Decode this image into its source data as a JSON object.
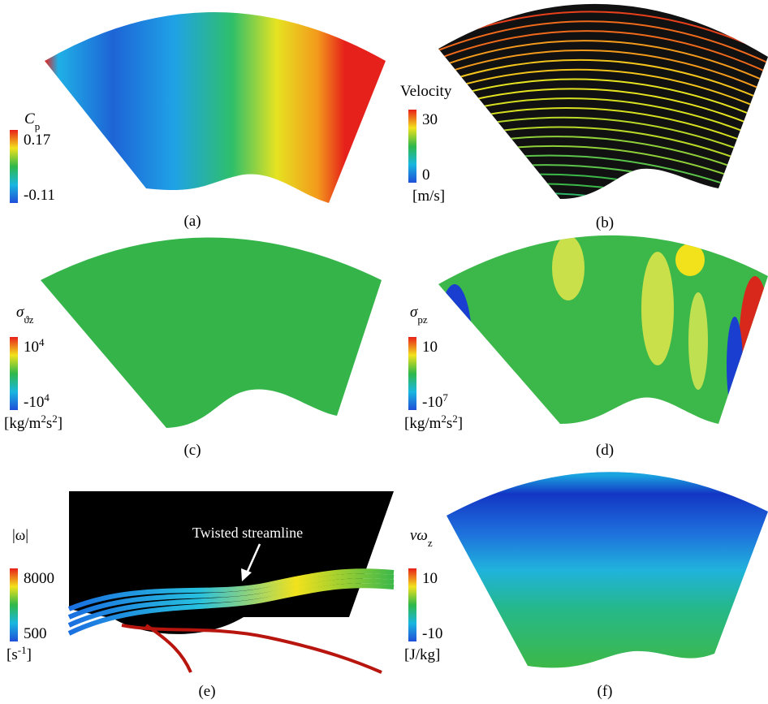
{
  "panels": [
    {
      "label": "(a)",
      "colorbar": {
        "title": [
          {
            "text": "C"
          },
          {
            "text": "p",
            "sub": true
          }
        ],
        "max": [
          {
            "text": "0.17"
          }
        ],
        "min": [
          {
            "text": "-0.11"
          }
        ],
        "unit": []
      }
    },
    {
      "label": "(b)",
      "colorbar": {
        "title": [
          {
            "text": "Velocity"
          }
        ],
        "max": [
          {
            "text": "30"
          }
        ],
        "min": [
          {
            "text": "0"
          }
        ],
        "unit": [
          {
            "text": "[m/s]"
          }
        ]
      }
    },
    {
      "label": "(c)",
      "colorbar": {
        "title": [
          {
            "text": "σ"
          },
          {
            "text": "ϑz",
            "sub": true
          }
        ],
        "max": [
          {
            "text": "10"
          },
          {
            "text": "4",
            "sup": true
          }
        ],
        "min": [
          {
            "text": "-10"
          },
          {
            "text": "4",
            "sup": true
          }
        ],
        "unit": [
          {
            "text": "[kg/m"
          },
          {
            "text": "2",
            "sup": true
          },
          {
            "text": "s"
          },
          {
            "text": "2",
            "sup": true
          },
          {
            "text": "]"
          }
        ]
      }
    },
    {
      "label": "(d)",
      "colorbar": {
        "title": [
          {
            "text": "σ"
          },
          {
            "text": "pz",
            "sub": true
          }
        ],
        "max": [
          {
            "text": "10"
          }
        ],
        "min": [
          {
            "text": "-10"
          },
          {
            "text": "7",
            "sup": true
          }
        ],
        "unit": [
          {
            "text": "[kg/m"
          },
          {
            "text": "2",
            "sup": true
          },
          {
            "text": "s"
          },
          {
            "text": "2",
            "sup": true
          },
          {
            "text": "]"
          }
        ]
      }
    },
    {
      "label": "(e)",
      "colorbar": {
        "title": [
          {
            "text": "|ω|"
          }
        ],
        "max": [
          {
            "text": "8000"
          }
        ],
        "min": [
          {
            "text": "500"
          }
        ],
        "unit": [
          {
            "text": "[s"
          },
          {
            "text": "-1",
            "sup": true
          },
          {
            "text": "]"
          }
        ]
      },
      "annotation": "Twisted streamline"
    },
    {
      "label": "(f)",
      "colorbar": {
        "title": [
          {
            "text": "νω"
          },
          {
            "text": "z",
            "sub": true
          }
        ],
        "max": [
          {
            "text": "10"
          }
        ],
        "min": [
          {
            "text": "-10"
          }
        ],
        "unit": [
          {
            "text": "[J/kg]"
          }
        ]
      }
    }
  ]
}
